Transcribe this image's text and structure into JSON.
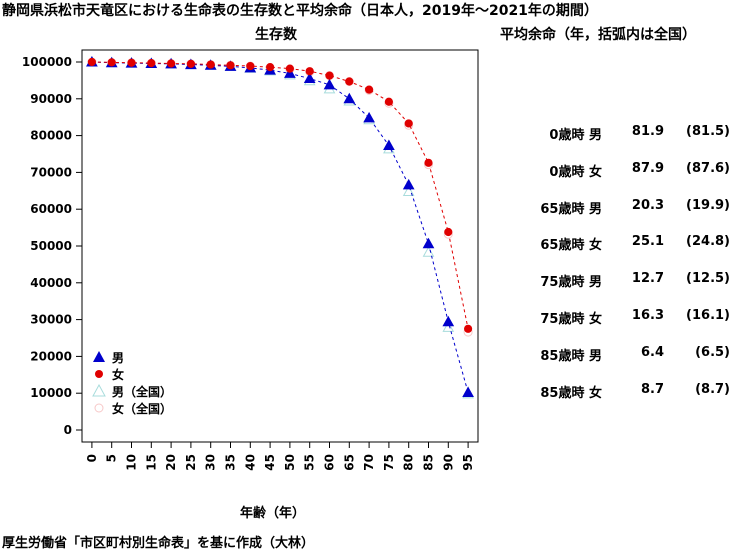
{
  "title": "静岡県浜松市天竜区における生命表の生存数と平均余命（日本人，2019年～2021年の期間）",
  "source": "厚生労働省「市区町村別生命表」を基に作成（大林）",
  "side_title": "平均余命（年，括弧内は全国）",
  "colors": {
    "male": "#0000cc",
    "female": "#e00000",
    "male_national": "#a8dcdc",
    "female_national": "#f7c8c8"
  },
  "life_expectancy": [
    {
      "label": "0歳時 男",
      "value": "81.9",
      "national": "(81.5)"
    },
    {
      "label": "0歳時 女",
      "value": "87.9",
      "national": "(87.6)"
    },
    {
      "label": "65歳時 男",
      "value": "20.3",
      "national": "(19.9)"
    },
    {
      "label": "65歳時 女",
      "value": "25.1",
      "national": "(24.8)"
    },
    {
      "label": "75歳時 男",
      "value": "12.7",
      "national": "(12.5)"
    },
    {
      "label": "75歳時 女",
      "value": "16.3",
      "national": "(16.1)"
    },
    {
      "label": "85歳時 男",
      "value": "6.4",
      "national": "(6.5)"
    },
    {
      "label": "85歳時 女",
      "value": "8.7",
      "national": "(8.7)"
    }
  ],
  "chart_data": {
    "type": "scatter",
    "title": "",
    "ylabel": "生存数",
    "xlabel": "年齢（年）",
    "x": [
      0,
      5,
      10,
      15,
      20,
      25,
      30,
      35,
      40,
      45,
      50,
      55,
      60,
      65,
      70,
      75,
      80,
      85,
      90,
      95
    ],
    "xticks": [
      "0",
      "5",
      "10",
      "15",
      "20",
      "25",
      "30",
      "35",
      "40",
      "45",
      "50",
      "55",
      "60",
      "65",
      "70",
      "75",
      "80",
      "85",
      "90",
      "95"
    ],
    "ylim": [
      0,
      100000
    ],
    "yticks": [
      "0",
      "10000",
      "20000",
      "30000",
      "40000",
      "50000",
      "60000",
      "70000",
      "80000",
      "90000",
      "100000"
    ],
    "legend_position": "bottom-left",
    "grid": false,
    "series": [
      {
        "name": "男",
        "marker": "triangle",
        "line": "dashed",
        "values": [
          100000,
          99800,
          99700,
          99600,
          99500,
          99300,
          99100,
          98800,
          98400,
          97800,
          96900,
          95500,
          93800,
          90000,
          84800,
          77300,
          66600,
          50600,
          29400,
          10200
        ]
      },
      {
        "name": "女",
        "marker": "circle",
        "line": "dashed",
        "values": [
          100000,
          99900,
          99800,
          99700,
          99600,
          99500,
          99300,
          99100,
          98900,
          98600,
          98200,
          97500,
          96300,
          94700,
          92500,
          89200,
          83300,
          72600,
          53800,
          27500
        ]
      },
      {
        "name": "男（全国）",
        "marker": "triangle-open",
        "line": "none",
        "values": [
          100000,
          99800,
          99700,
          99600,
          99500,
          99300,
          99100,
          98800,
          98300,
          97600,
          96500,
          94900,
          92700,
          89400,
          84300,
          76400,
          64800,
          48300,
          27900,
          9800
        ]
      },
      {
        "name": "女（全国）",
        "marker": "circle-open",
        "line": "none",
        "values": [
          100000,
          99800,
          99800,
          99700,
          99600,
          99500,
          99300,
          99100,
          98900,
          98500,
          98000,
          97300,
          96300,
          94700,
          92300,
          88800,
          82800,
          72100,
          53200,
          26600
        ]
      }
    ]
  }
}
